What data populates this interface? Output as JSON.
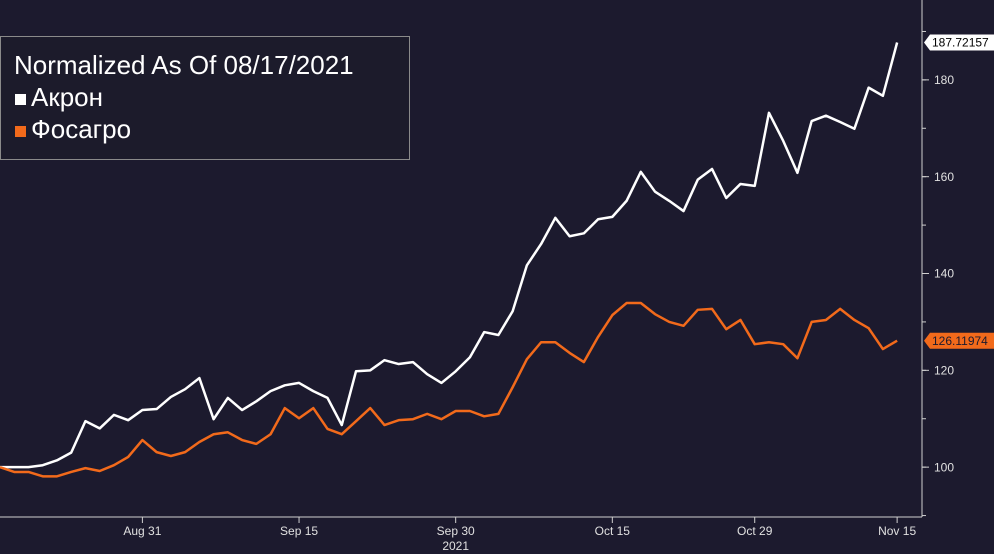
{
  "chart_data": {
    "type": "line",
    "title": "Normalized As Of 08/17/2021",
    "categories": [
      null,
      null,
      null,
      null,
      null,
      null,
      null,
      null,
      null,
      null,
      "Aug 31",
      null,
      null,
      null,
      null,
      null,
      null,
      null,
      null,
      null,
      null,
      "Sep 15",
      null,
      null,
      null,
      null,
      null,
      null,
      null,
      null,
      null,
      null,
      "Sep 30",
      null,
      null,
      null,
      null,
      null,
      null,
      null,
      null,
      null,
      null,
      "Oct 15",
      null,
      null,
      null,
      null,
      null,
      null,
      null,
      null,
      null,
      "Oct 29",
      null,
      null,
      null,
      null,
      null,
      null,
      null,
      null,
      null,
      "Nov 15"
    ],
    "x_year_label": "2021",
    "series": [
      {
        "name": "Акрон",
        "color": "#ffffff",
        "label_text_color": "#000000",
        "values": [
          100,
          100,
          100,
          100.4,
          101.4,
          103,
          109.5,
          108,
          110.8,
          109.7,
          111.8,
          112,
          114.5,
          116.1,
          118.4,
          109.9,
          114.3,
          111.8,
          113.6,
          115.7,
          116.9,
          117.4,
          115.7,
          114.3,
          108.7,
          119.8,
          120,
          122.1,
          121.3,
          121.7,
          119.2,
          117.4,
          119.8,
          122.7,
          127.9,
          127.3,
          132.2,
          141.7,
          146.1,
          151.5,
          147.7,
          148.3,
          151.2,
          151.7,
          155,
          161,
          156.9,
          155,
          152.9,
          159.4,
          161.6,
          155.6,
          158.5,
          158.1,
          173.2,
          167.4,
          160.8,
          171.5,
          172.6,
          171.3,
          169.9,
          178.4,
          176.7,
          187.72157
        ]
      },
      {
        "name": "Фосагро",
        "color": "#f26a1b",
        "label_text_color": "#1c1a2e",
        "values": [
          100,
          99,
          99,
          98.1,
          98.1,
          99,
          99.8,
          99.2,
          100.4,
          102.1,
          105.6,
          103.1,
          102.3,
          103.1,
          105.2,
          106.8,
          107.2,
          105.6,
          104.8,
          106.8,
          112.2,
          110.1,
          112.2,
          107.9,
          106.8,
          109.5,
          112.2,
          108.7,
          109.7,
          109.9,
          111,
          109.9,
          111.6,
          111.6,
          110.5,
          111,
          116.5,
          122.3,
          125.8,
          125.8,
          123.6,
          121.7,
          126.9,
          131.4,
          133.9,
          133.9,
          131.6,
          130,
          129.2,
          132.5,
          132.7,
          128.5,
          130.4,
          125.4,
          125.8,
          125.4,
          122.5,
          130,
          130.4,
          132.7,
          130.4,
          128.7,
          124.4,
          126.11974
        ]
      }
    ],
    "ylim": [
      89.7,
      196.5
    ],
    "yticks": [
      100,
      120,
      140,
      160,
      180
    ],
    "y_minor_step": 10,
    "background": "#1c1a2e"
  }
}
